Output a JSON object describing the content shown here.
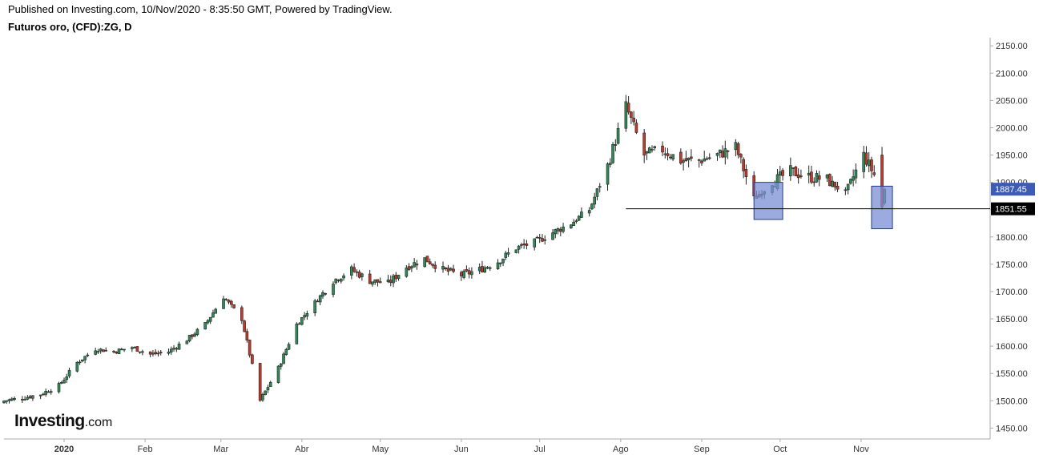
{
  "header": {
    "published": "Published on Investing.com, 10/Nov/2020 - 8:35:50 GMT, Powered by TradingView.",
    "symbol": "Futuros oro, (CFD):ZG, D"
  },
  "logo": {
    "brand": "Investing",
    "suffix": ".com"
  },
  "colors": {
    "up": "#2e8b57",
    "down": "#c0392b",
    "box_fill": "#7b8fd4",
    "box_stroke": "#2a3a8a",
    "price_tag": "#3b5bb5",
    "axis": "#aaaaaa"
  },
  "chart_data": {
    "type": "candlestick",
    "title": "Futuros oro, (CFD):ZG, D",
    "ylim": [
      1430,
      2165
    ],
    "y_ticks": [
      "1450.00",
      "1500.00",
      "1550.00",
      "1600.00",
      "1650.00",
      "1700.00",
      "1750.00",
      "1800.00",
      "1850.00",
      "1900.00",
      "1950.00",
      "2000.00",
      "2050.00",
      "2100.00",
      "2150.00"
    ],
    "x_labels": [
      "2020",
      "Feb",
      "Mar",
      "Abr",
      "May",
      "Jun",
      "Jul",
      "Ago",
      "Sep",
      "Oct",
      "Nov"
    ],
    "x_start": "2019-12-09",
    "close_series": [
      [
        "2019-12-09",
        1500
      ],
      [
        "2019-12-16",
        1505
      ],
      [
        "2019-12-23",
        1512
      ],
      [
        "2019-12-30",
        1528
      ],
      [
        "2020-01-06",
        1570
      ],
      [
        "2020-01-13",
        1595
      ],
      [
        "2020-01-20",
        1590
      ],
      [
        "2020-01-27",
        1598
      ],
      [
        "2020-02-03",
        1585
      ],
      [
        "2020-02-10",
        1590
      ],
      [
        "2020-02-17",
        1612
      ],
      [
        "2020-02-24",
        1640
      ],
      [
        "2020-03-02",
        1690
      ],
      [
        "2020-03-09",
        1650
      ],
      [
        "2020-03-16",
        1500
      ],
      [
        "2020-03-23",
        1560
      ],
      [
        "2020-03-30",
        1640
      ],
      [
        "2020-04-06",
        1680
      ],
      [
        "2020-04-13",
        1720
      ],
      [
        "2020-04-20",
        1740
      ],
      [
        "2020-04-27",
        1720
      ],
      [
        "2020-05-04",
        1715
      ],
      [
        "2020-05-11",
        1745
      ],
      [
        "2020-05-18",
        1760
      ],
      [
        "2020-05-25",
        1740
      ],
      [
        "2020-06-01",
        1730
      ],
      [
        "2020-06-08",
        1740
      ],
      [
        "2020-06-15",
        1755
      ],
      [
        "2020-06-22",
        1780
      ],
      [
        "2020-06-29",
        1790
      ],
      [
        "2020-07-06",
        1808
      ],
      [
        "2020-07-13",
        1825
      ],
      [
        "2020-07-20",
        1850
      ],
      [
        "2020-07-27",
        1930
      ],
      [
        "2020-08-03",
        2040
      ],
      [
        "2020-08-10",
        1950
      ],
      [
        "2020-08-17",
        1960
      ],
      [
        "2020-08-24",
        1940
      ],
      [
        "2020-08-31",
        1940
      ],
      [
        "2020-09-07",
        1950
      ],
      [
        "2020-09-14",
        1965
      ],
      [
        "2020-09-21",
        1870
      ],
      [
        "2020-09-28",
        1900
      ],
      [
        "2020-10-05",
        1920
      ],
      [
        "2020-10-12",
        1910
      ],
      [
        "2020-10-19",
        1905
      ],
      [
        "2020-10-26",
        1880
      ],
      [
        "2020-11-02",
        1950
      ],
      [
        "2020-11-09",
        1887
      ]
    ],
    "hline": {
      "value": 1851.55,
      "from": "2020-08-03"
    },
    "boxes": [
      {
        "x0": "2020-09-21",
        "x1": "2020-10-02",
        "y0": 1832,
        "y1": 1900
      },
      {
        "x0": "2020-11-05",
        "x1": "2020-11-13",
        "y0": 1815,
        "y1": 1893
      }
    ],
    "price_tags": [
      {
        "label": "1887.45",
        "value": 1887.45,
        "style": "blue"
      },
      {
        "label": "1851.55",
        "value": 1851.55,
        "style": "black"
      }
    ]
  }
}
